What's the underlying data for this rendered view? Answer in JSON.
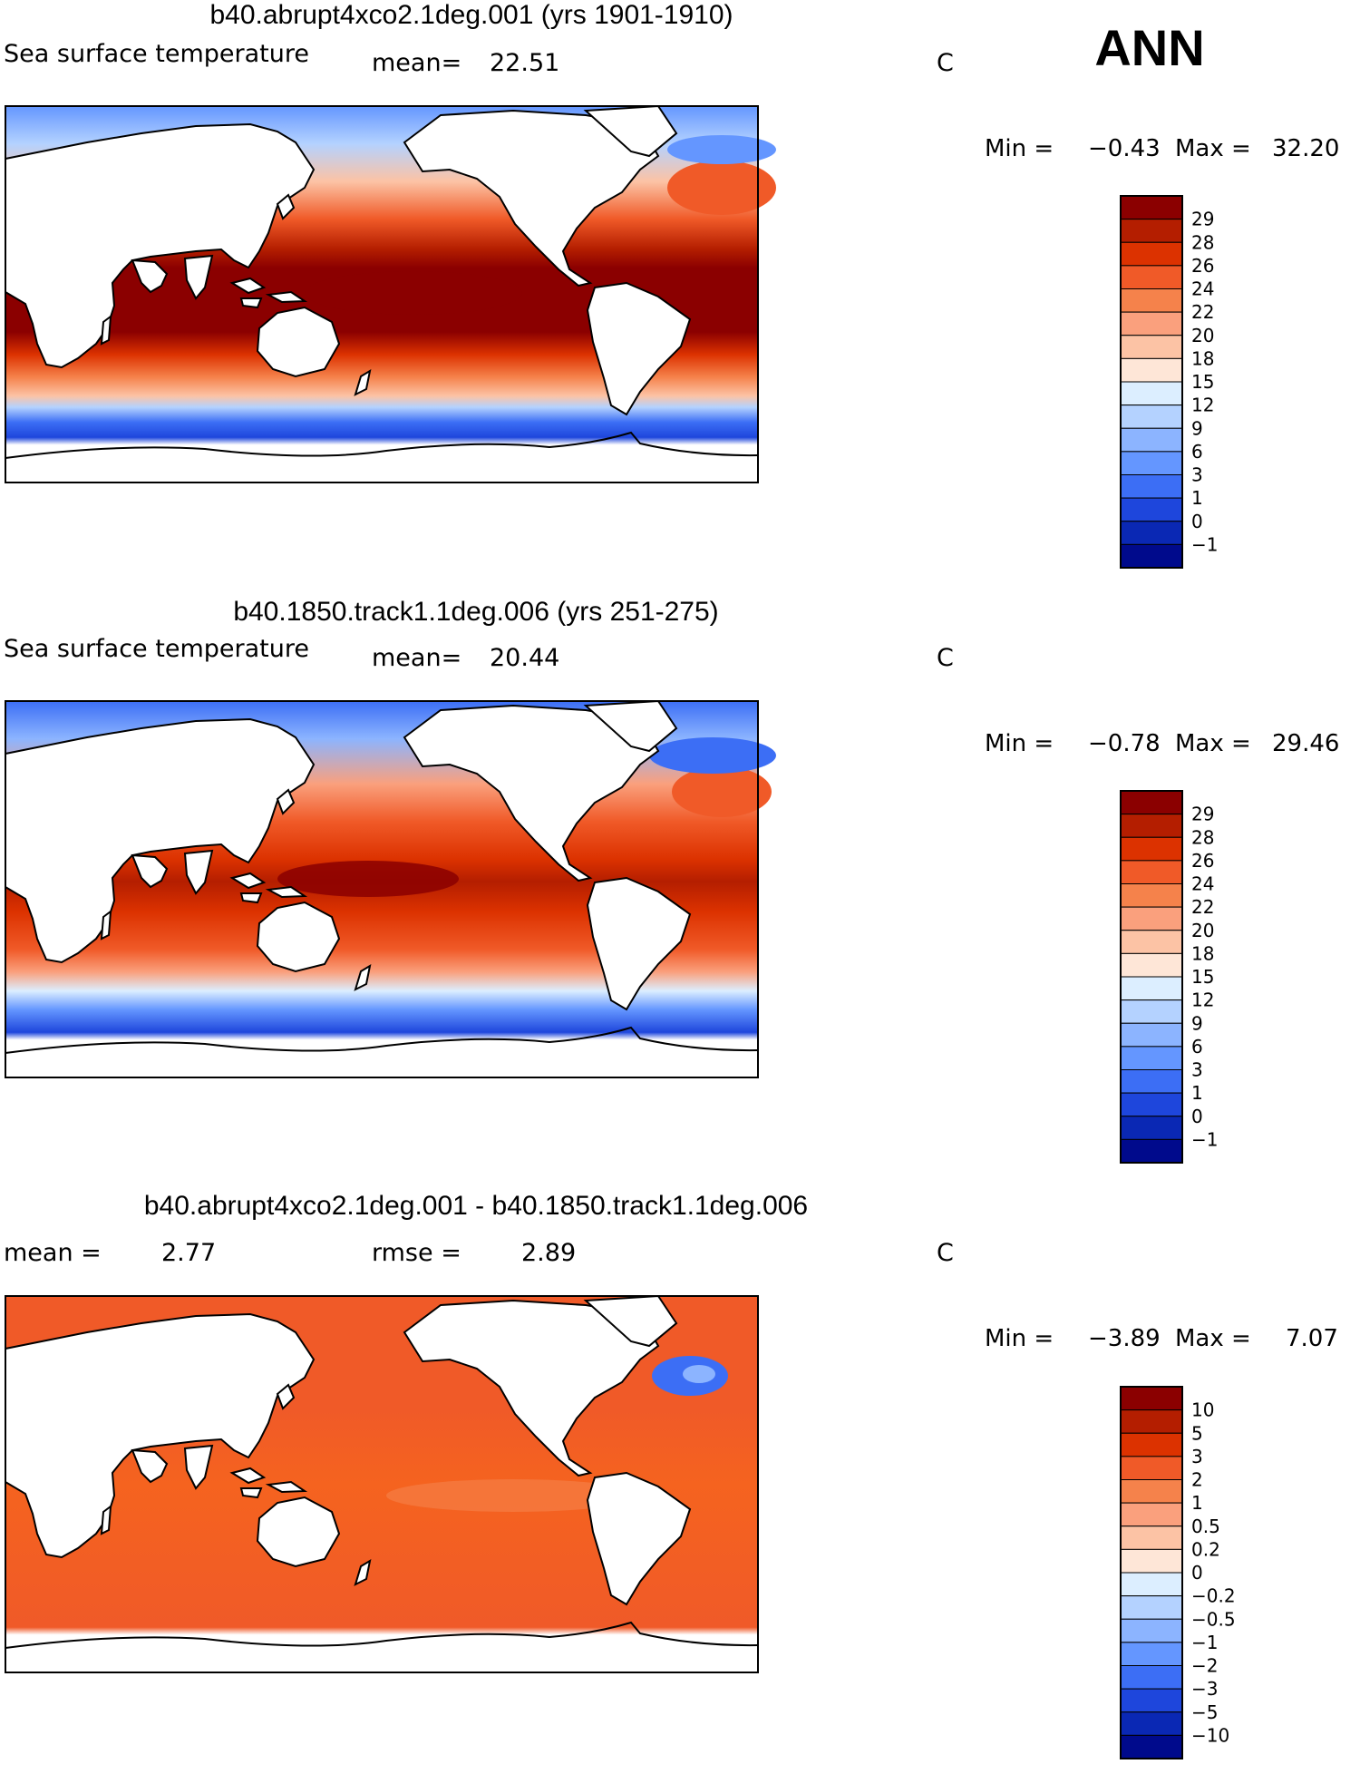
{
  "season": "ANN",
  "chart_data": [
    {
      "type": "heatmap",
      "title": "b40.abrupt4xco2.1deg.001 (yrs 1901-1910)",
      "variable": "Sea surface temperature",
      "mean_label": "mean=",
      "mean": "22.51",
      "units": "C",
      "min_label": "Min =",
      "min": "−0.43",
      "max_label": "Max =",
      "max": "32.20",
      "colorbar": {
        "labels": [
          "29",
          "28",
          "26",
          "24",
          "22",
          "20",
          "18",
          "15",
          "12",
          "9",
          "6",
          "3",
          "1",
          "0",
          "−1"
        ],
        "colors": [
          "#8b0000",
          "#b41e00",
          "#dc3200",
          "#f05a28",
          "#f5824b",
          "#faa07d",
          "#fcc3a5",
          "#fee6d7",
          "#dceeff",
          "#b4d2ff",
          "#8cb4ff",
          "#6496ff",
          "#3c6ef5",
          "#1e46dc",
          "#0a28b4",
          "#000a8c"
        ]
      }
    },
    {
      "type": "heatmap",
      "title": "b40.1850.track1.1deg.006 (yrs 251-275)",
      "variable": "Sea surface temperature",
      "mean_label": "mean=",
      "mean": "20.44",
      "units": "C",
      "min_label": "Min =",
      "min": "−0.78",
      "max_label": "Max =",
      "max": "29.46",
      "colorbar": {
        "labels": [
          "29",
          "28",
          "26",
          "24",
          "22",
          "20",
          "18",
          "15",
          "12",
          "9",
          "6",
          "3",
          "1",
          "0",
          "−1"
        ],
        "colors": [
          "#8b0000",
          "#b41e00",
          "#dc3200",
          "#f05a28",
          "#f5824b",
          "#faa07d",
          "#fcc3a5",
          "#fee6d7",
          "#dceeff",
          "#b4d2ff",
          "#8cb4ff",
          "#6496ff",
          "#3c6ef5",
          "#1e46dc",
          "#0a28b4",
          "#000a8c"
        ]
      }
    },
    {
      "type": "heatmap",
      "title": "b40.abrupt4xco2.1deg.001 - b40.1850.track1.1deg.006",
      "variable": "",
      "mean_label": "mean =",
      "mean": "2.77",
      "rmse_label": "rmse =",
      "rmse": "2.89",
      "units": "C",
      "min_label": "Min =",
      "min": "−3.89",
      "max_label": "Max =",
      "max": "7.07",
      "colorbar": {
        "labels": [
          "10",
          "5",
          "3",
          "2",
          "1",
          "0.5",
          "0.2",
          "0",
          "−0.2",
          "−0.5",
          "−1",
          "−2",
          "−3",
          "−5",
          "−10"
        ],
        "colors": [
          "#8b0000",
          "#b41e00",
          "#dc3200",
          "#f05a28",
          "#f5824b",
          "#faa07d",
          "#fcc3a5",
          "#fee6d7",
          "#dceeff",
          "#b4d2ff",
          "#8cb4ff",
          "#6496ff",
          "#3c6ef5",
          "#1e46dc",
          "#0a28b4",
          "#000a8c"
        ]
      }
    }
  ]
}
